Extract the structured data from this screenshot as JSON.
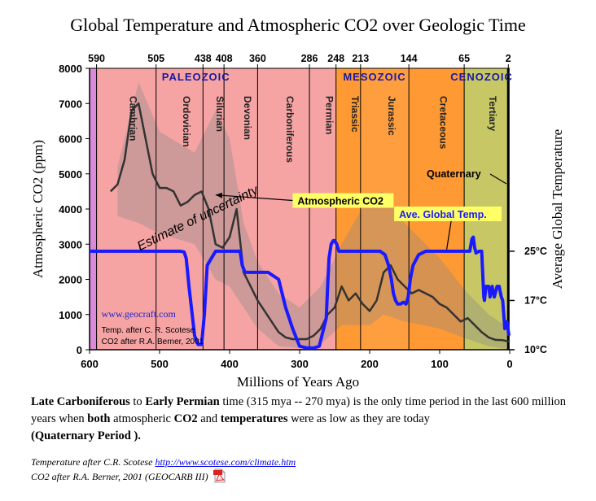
{
  "title": "Global Temperature and Atmospheric CO2 over Geologic Time",
  "colors": {
    "permian_red": "#f5a3a3",
    "mesozoic_orange": "#ff9933",
    "cenozoic_olive": "#c7c766",
    "cambrian_pink": "#d98ad9",
    "temp_line": "#1a1aff",
    "co2_line": "#333333",
    "label_yellow": "#ffff66",
    "era_label": "#1a1aa0"
  },
  "chart_data": {
    "type": "line",
    "title": "Global Temperature and Atmospheric CO2 over Geologic Time",
    "xlabel": "Millions of Years Ago",
    "ylabel": "Atmospheric CO2 (ppm)",
    "y2label": "Average Global Temperature",
    "xlim": [
      600,
      0
    ],
    "ylim": [
      0,
      8000
    ],
    "x_ticks": [
      600,
      500,
      400,
      300,
      200,
      100,
      0
    ],
    "y_ticks": [
      0,
      1000,
      2000,
      3000,
      4000,
      5000,
      6000,
      7000,
      8000
    ],
    "y2_ticks": [
      {
        "label": "25°C",
        "co2_equiv": 2800
      },
      {
        "label": "17°C",
        "co2_equiv": 1400
      },
      {
        "label": "10°C",
        "co2_equiv": 0
      }
    ],
    "boundary_ticks": [
      590,
      505,
      438,
      408,
      360,
      286,
      248,
      213,
      144,
      65,
      2
    ],
    "eras": [
      {
        "name": "PALEOZOIC",
        "center_x": 448
      },
      {
        "name": "MESOZOIC",
        "center_x": 193
      },
      {
        "name": "CENOZOIC",
        "center_x": 40
      }
    ],
    "periods": [
      {
        "name": "Cambrian",
        "center_x": 547
      },
      {
        "name": "Ordovician",
        "center_x": 471
      },
      {
        "name": "Silurian",
        "center_x": 423
      },
      {
        "name": "Devonian",
        "center_x": 384
      },
      {
        "name": "Carboniferous",
        "center_x": 323
      },
      {
        "name": "Permian",
        "center_x": 267
      },
      {
        "name": "Triassic",
        "center_x": 230
      },
      {
        "name": "Jurassic",
        "center_x": 178
      },
      {
        "name": "Cretaceous",
        "center_x": 104
      },
      {
        "name": "Tertiary",
        "center_x": 34
      }
    ],
    "quaternary_label": "Quaternary",
    "series": [
      {
        "name": "Atmospheric CO2",
        "x": [
          570,
          560,
          550,
          540,
          530,
          520,
          510,
          500,
          490,
          480,
          470,
          460,
          450,
          440,
          430,
          420,
          410,
          400,
          390,
          380,
          370,
          360,
          350,
          340,
          330,
          320,
          310,
          300,
          290,
          280,
          270,
          260,
          250,
          240,
          230,
          220,
          210,
          200,
          190,
          180,
          170,
          160,
          150,
          140,
          130,
          120,
          110,
          100,
          90,
          80,
          70,
          60,
          50,
          40,
          30,
          20,
          10,
          0
        ],
        "values": [
          4500,
          4700,
          5400,
          6800,
          7000,
          6000,
          5000,
          4600,
          4600,
          4500,
          4100,
          4200,
          4400,
          4500,
          4000,
          3000,
          2900,
          3200,
          4000,
          2200,
          1800,
          1400,
          1100,
          800,
          500,
          350,
          300,
          300,
          300,
          400,
          600,
          1000,
          1200,
          1800,
          1400,
          1600,
          1300,
          1100,
          1400,
          2200,
          2400,
          2000,
          1800,
          1600,
          1700,
          1600,
          1500,
          1300,
          1200,
          1000,
          800,
          900,
          700,
          500,
          350,
          280,
          270,
          230
        ]
      },
      {
        "name": "Ave. Global Temp.",
        "x": [
          600,
          560,
          520,
          480,
          470,
          465,
          462,
          458,
          450,
          445,
          440,
          436,
          432,
          420,
          400,
          385,
          382,
          378,
          360,
          345,
          330,
          320,
          310,
          300,
          290,
          280,
          272,
          262,
          260,
          258,
          255,
          252,
          250,
          247,
          244,
          240,
          220,
          200,
          185,
          178,
          173,
          169,
          166,
          163,
          160,
          156,
          152,
          148,
          145,
          142,
          138,
          130,
          120,
          100,
          80,
          70,
          62,
          57,
          54,
          52,
          50,
          48,
          44,
          40,
          37,
          36,
          34,
          30,
          28,
          25,
          22,
          18,
          15,
          12,
          10,
          7,
          4,
          1
        ],
        "values": [
          2800,
          2800,
          2800,
          2800,
          2800,
          2780,
          2600,
          1800,
          400,
          150,
          150,
          1000,
          2400,
          2800,
          2800,
          2800,
          2400,
          2200,
          2200,
          2200,
          2000,
          1200,
          600,
          100,
          50,
          50,
          100,
          900,
          1800,
          2600,
          3000,
          3100,
          3100,
          3000,
          2800,
          2800,
          2800,
          2800,
          2800,
          2700,
          2400,
          2000,
          1600,
          1400,
          1300,
          1300,
          1350,
          1300,
          1500,
          2000,
          2400,
          2700,
          2800,
          2800,
          2800,
          2800,
          2800,
          2800,
          3150,
          3200,
          2900,
          2750,
          2800,
          2800,
          1500,
          1400,
          1800,
          1800,
          1500,
          1800,
          1500,
          1800,
          1800,
          1500,
          1400,
          600,
          800,
          400
        ]
      }
    ],
    "annotations": [
      {
        "text": "Atmospheric CO2",
        "x_data": 310,
        "y_data": 4150
      },
      {
        "text": "Ave. Global Temp.",
        "x_data": 165,
        "y_data": 3770
      },
      {
        "text": "Estimate of uncertainty",
        "x_data": 470,
        "y_data": 4200
      },
      {
        "text": "www.geocraft.com",
        "x_data": 583,
        "y_data": 920
      },
      {
        "text": "Temp. after C. R. Scotese",
        "x_data": 583,
        "y_data": 480
      },
      {
        "text": "CO2 after R.A. Berner, 2001",
        "x_data": 583,
        "y_data": 160
      }
    ]
  },
  "caption": {
    "p1": "Late Carboniferous",
    "p2": " to ",
    "p3": "Early Permian",
    "p4": " time (315 mya -- 270 mya) is the only time period in the last 600 million years when ",
    "p5": "both",
    "p6": " atmospheric ",
    "p7": "CO2",
    "p8": " and ",
    "p9": "temperatures",
    "p10": " were as low as they are today",
    "p11": "(Quaternary Period ).",
    "credit1_text": "Temperature after C.R. Scotese ",
    "credit1_link": "http://www.scotese.com/climate.htm",
    "credit2_text": "CO2 after R.A. Berner, 2001 (GEOCARB III)",
    "pdf_icon": "pdf-icon"
  }
}
